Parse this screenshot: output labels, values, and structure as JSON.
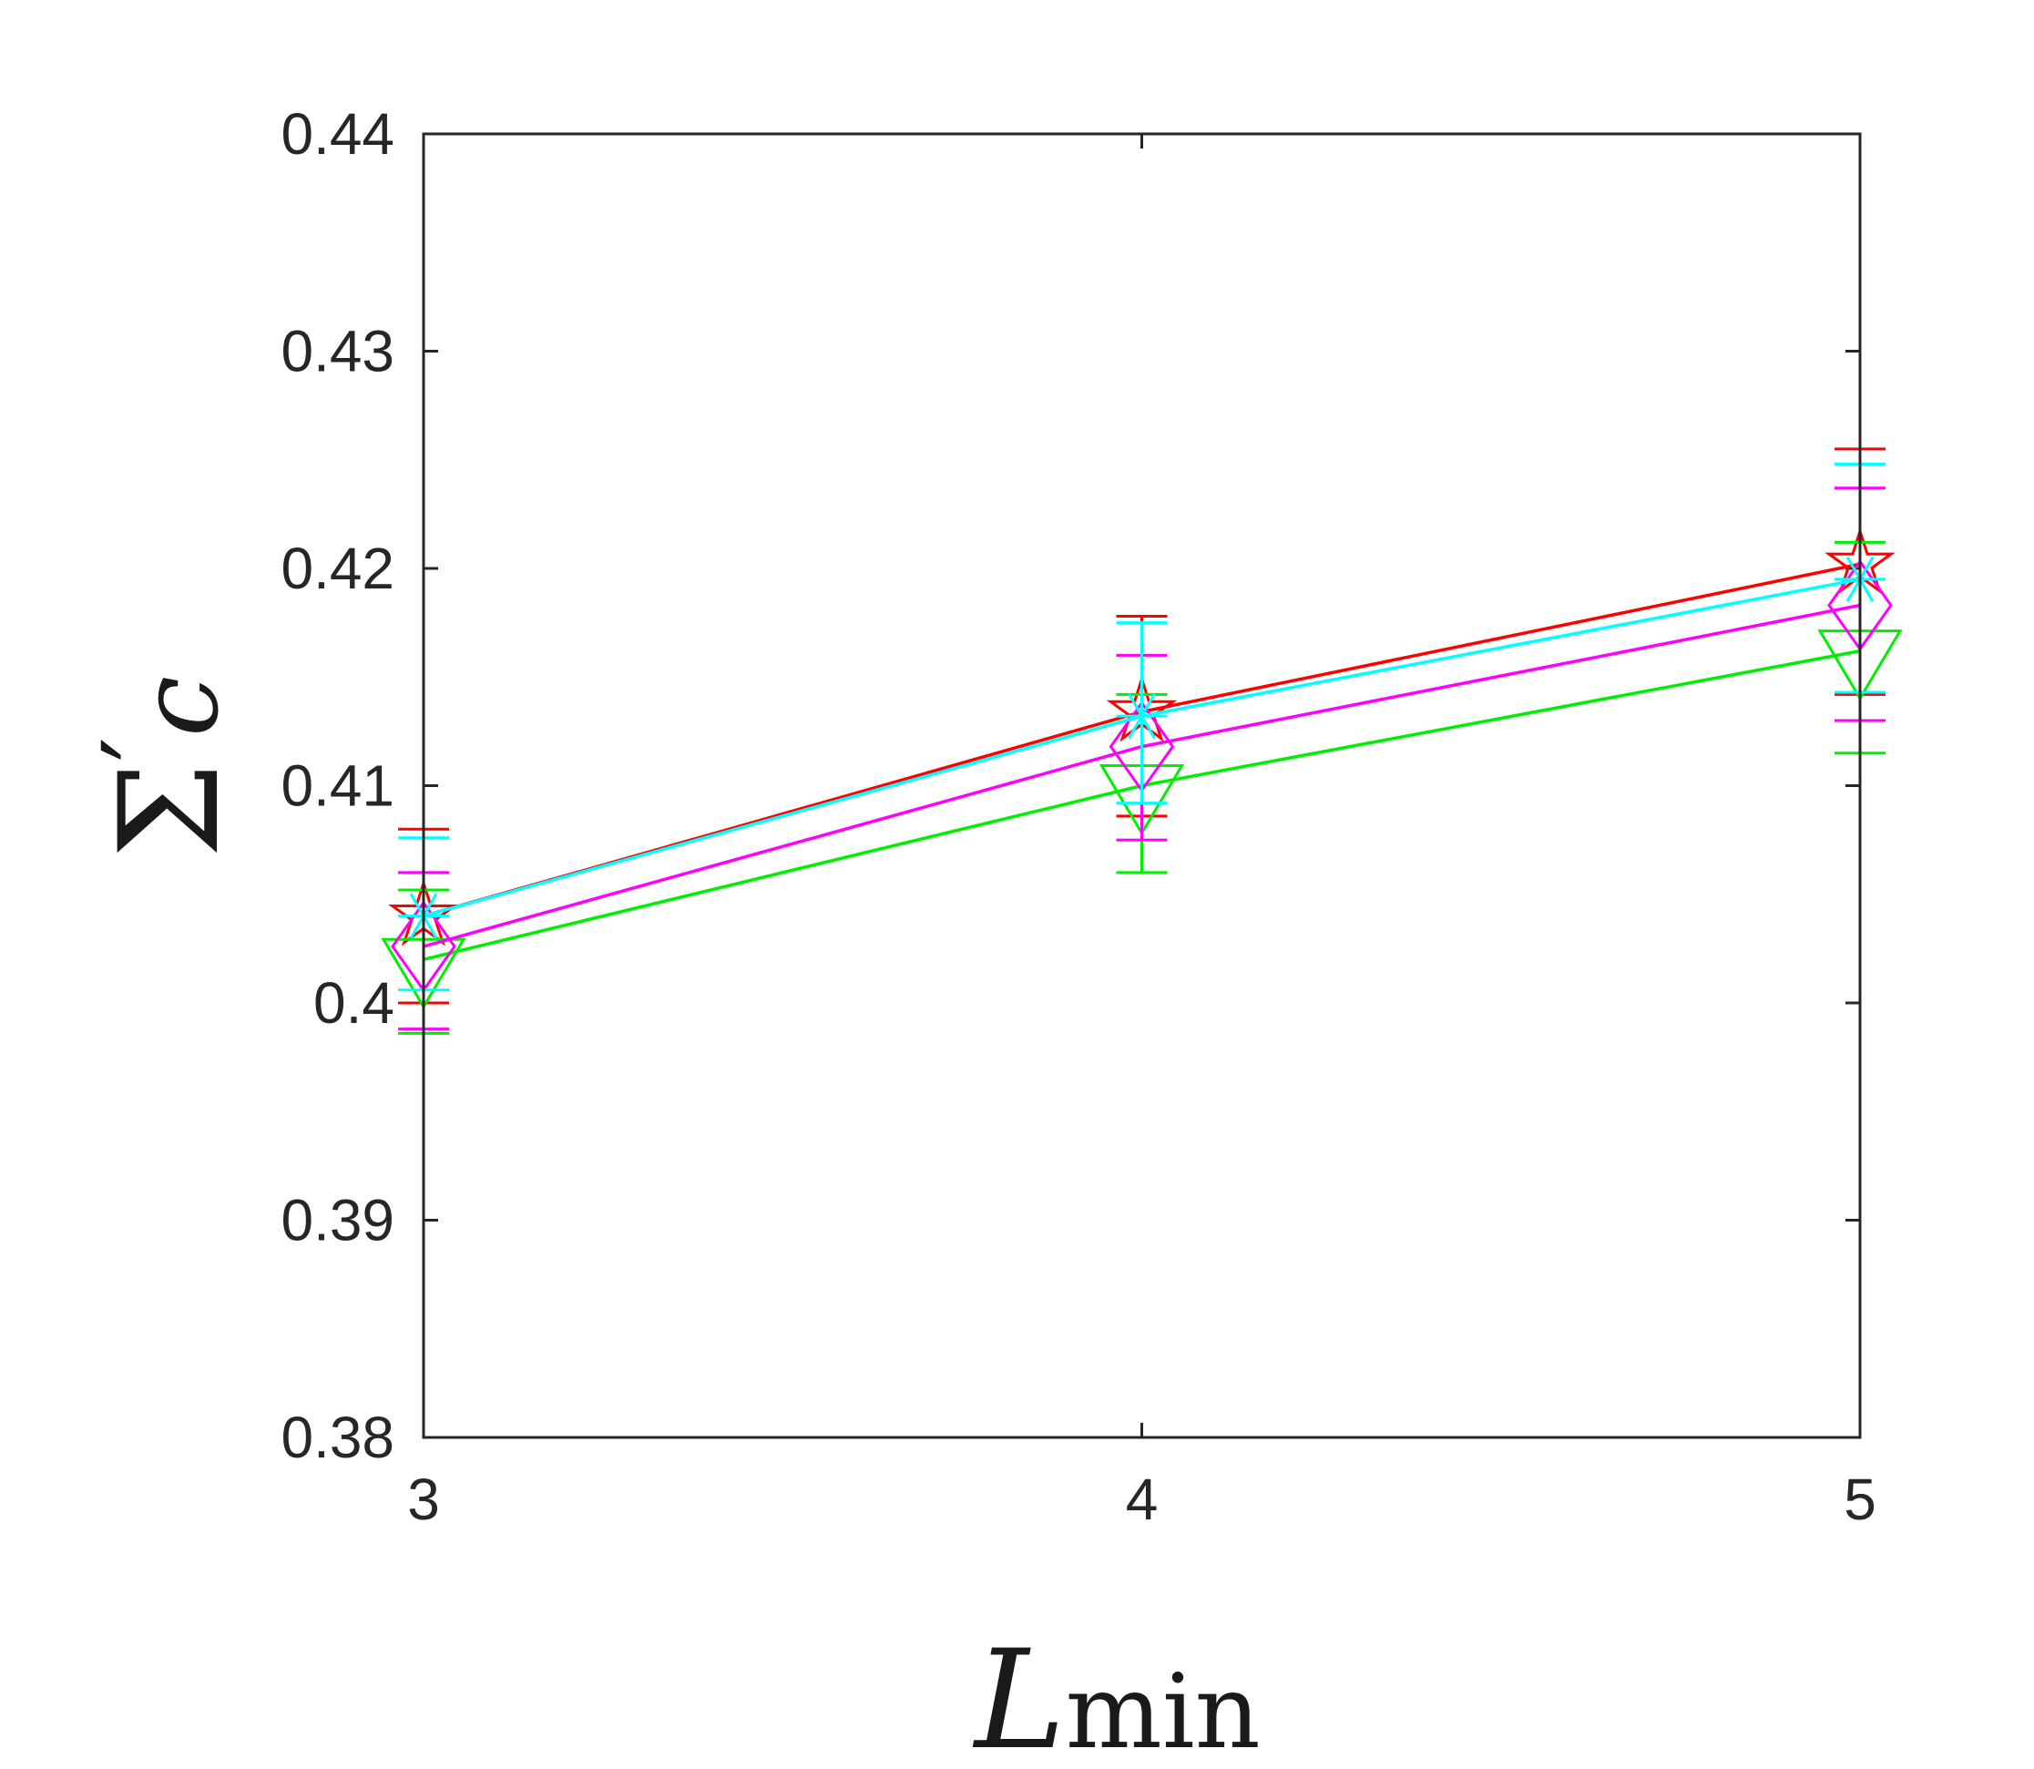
{
  "chart_data": {
    "type": "line",
    "title": "",
    "xlabel": "L",
    "xlabel_subscript": "min",
    "ylabel": "Σ",
    "ylabel_prime": "′",
    "ylabel_subscript": "c",
    "x": [
      3,
      4,
      5
    ],
    "xlim": [
      3,
      5
    ],
    "ylim": [
      0.38,
      0.44
    ],
    "x_ticks": [
      "3",
      "4",
      "5"
    ],
    "y_ticks": [
      "0.38",
      "0.39",
      "0.4",
      "0.41",
      "0.42",
      "0.43",
      "0.44"
    ],
    "grid": false,
    "legend": "none",
    "series": [
      {
        "color": "#ff0000",
        "marker": "pentagram",
        "values": [
          0.404,
          0.4134,
          0.4202
        ],
        "err_low": [
          0.4,
          0.4086,
          0.4142
        ],
        "err_high": [
          0.408,
          0.4178,
          0.4255
        ]
      },
      {
        "color": "#00ee00",
        "marker": "triangle-down",
        "values": [
          0.402,
          0.41,
          0.4162
        ],
        "err_low": [
          0.3986,
          0.406,
          0.4115
        ],
        "err_high": [
          0.4052,
          0.4142,
          0.4212
        ]
      },
      {
        "color": "#ff00ff",
        "marker": "diamond",
        "values": [
          0.4026,
          0.4118,
          0.4183
        ],
        "err_low": [
          0.3988,
          0.4075,
          0.413
        ],
        "err_high": [
          0.406,
          0.416,
          0.4237
        ]
      },
      {
        "color": "#00ffff",
        "marker": "asterisk",
        "values": [
          0.404,
          0.4132,
          0.4195
        ],
        "err_low": [
          0.4006,
          0.4092,
          0.4143
        ],
        "err_high": [
          0.4076,
          0.4175,
          0.4248
        ]
      }
    ]
  }
}
